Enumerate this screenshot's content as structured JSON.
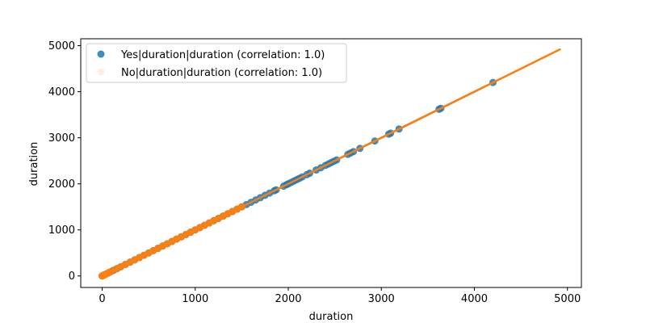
{
  "chart_data": {
    "type": "scatter",
    "title": "",
    "xlabel": "duration",
    "ylabel": "duration",
    "xlim": [
      -230,
      5150
    ],
    "ylim": [
      -250,
      5150
    ],
    "xticks": [
      0,
      1000,
      2000,
      3000,
      4000,
      5000
    ],
    "yticks": [
      0,
      1000,
      2000,
      3000,
      4000,
      5000
    ],
    "grid": false,
    "legend_position": "top-left",
    "series": [
      {
        "name": "Yes|duration|duration (correlation: 1.0)",
        "color": "#1f77b4",
        "x": [
          0,
          20,
          50,
          80,
          120,
          160,
          200,
          250,
          300,
          350,
          400,
          450,
          500,
          550,
          600,
          650,
          700,
          750,
          800,
          850,
          900,
          950,
          1000,
          1050,
          1100,
          1150,
          1200,
          1250,
          1300,
          1350,
          1400,
          1450,
          1500,
          1550,
          1600,
          1650,
          1700,
          1750,
          1800,
          1850,
          1870,
          1950,
          1980,
          2000,
          2030,
          2060,
          2090,
          2120,
          2150,
          2200,
          2230,
          2300,
          2350,
          2400,
          2430,
          2460,
          2490,
          2520,
          2640,
          2670,
          2700,
          2770,
          2930,
          3080,
          3100,
          3190,
          3620,
          3640,
          4200
        ],
        "y": [
          0,
          20,
          50,
          80,
          120,
          160,
          200,
          250,
          300,
          350,
          400,
          450,
          500,
          550,
          600,
          650,
          700,
          750,
          800,
          850,
          900,
          950,
          1000,
          1050,
          1100,
          1150,
          1200,
          1250,
          1300,
          1350,
          1400,
          1450,
          1500,
          1550,
          1600,
          1650,
          1700,
          1750,
          1800,
          1850,
          1870,
          1950,
          1980,
          2000,
          2030,
          2060,
          2090,
          2120,
          2150,
          2200,
          2230,
          2300,
          2350,
          2400,
          2430,
          2460,
          2490,
          2520,
          2640,
          2670,
          2700,
          2770,
          2930,
          3080,
          3100,
          3190,
          3620,
          3640,
          4200
        ]
      },
      {
        "name": "No|duration|duration (correlation: 1.0)",
        "color": "#ff7f0e",
        "x": [
          0,
          5,
          10,
          20,
          30,
          50,
          70,
          100,
          150,
          200,
          250,
          300,
          350,
          400,
          450,
          500,
          550,
          600,
          650,
          700,
          750,
          800,
          850,
          900,
          950,
          1000,
          1050,
          1100,
          1150,
          1200,
          1250,
          1300,
          1350,
          1400,
          1450,
          1500
        ],
        "y": [
          0,
          5,
          10,
          20,
          30,
          50,
          70,
          100,
          150,
          200,
          250,
          300,
          350,
          400,
          450,
          500,
          550,
          600,
          650,
          700,
          750,
          800,
          850,
          900,
          950,
          1000,
          1050,
          1100,
          1150,
          1200,
          1250,
          1300,
          1350,
          1400,
          1450,
          1500
        ]
      }
    ],
    "regression_lines": [
      {
        "series": "Yes|duration|duration (correlation: 1.0)",
        "color": "#1f77b4",
        "x": [
          0,
          4200
        ],
        "y": [
          0,
          4200
        ]
      },
      {
        "series": "No|duration|duration (correlation: 1.0)",
        "color": "#ff7f0e",
        "x": [
          0,
          4920
        ],
        "y": [
          0,
          4920
        ]
      }
    ]
  }
}
